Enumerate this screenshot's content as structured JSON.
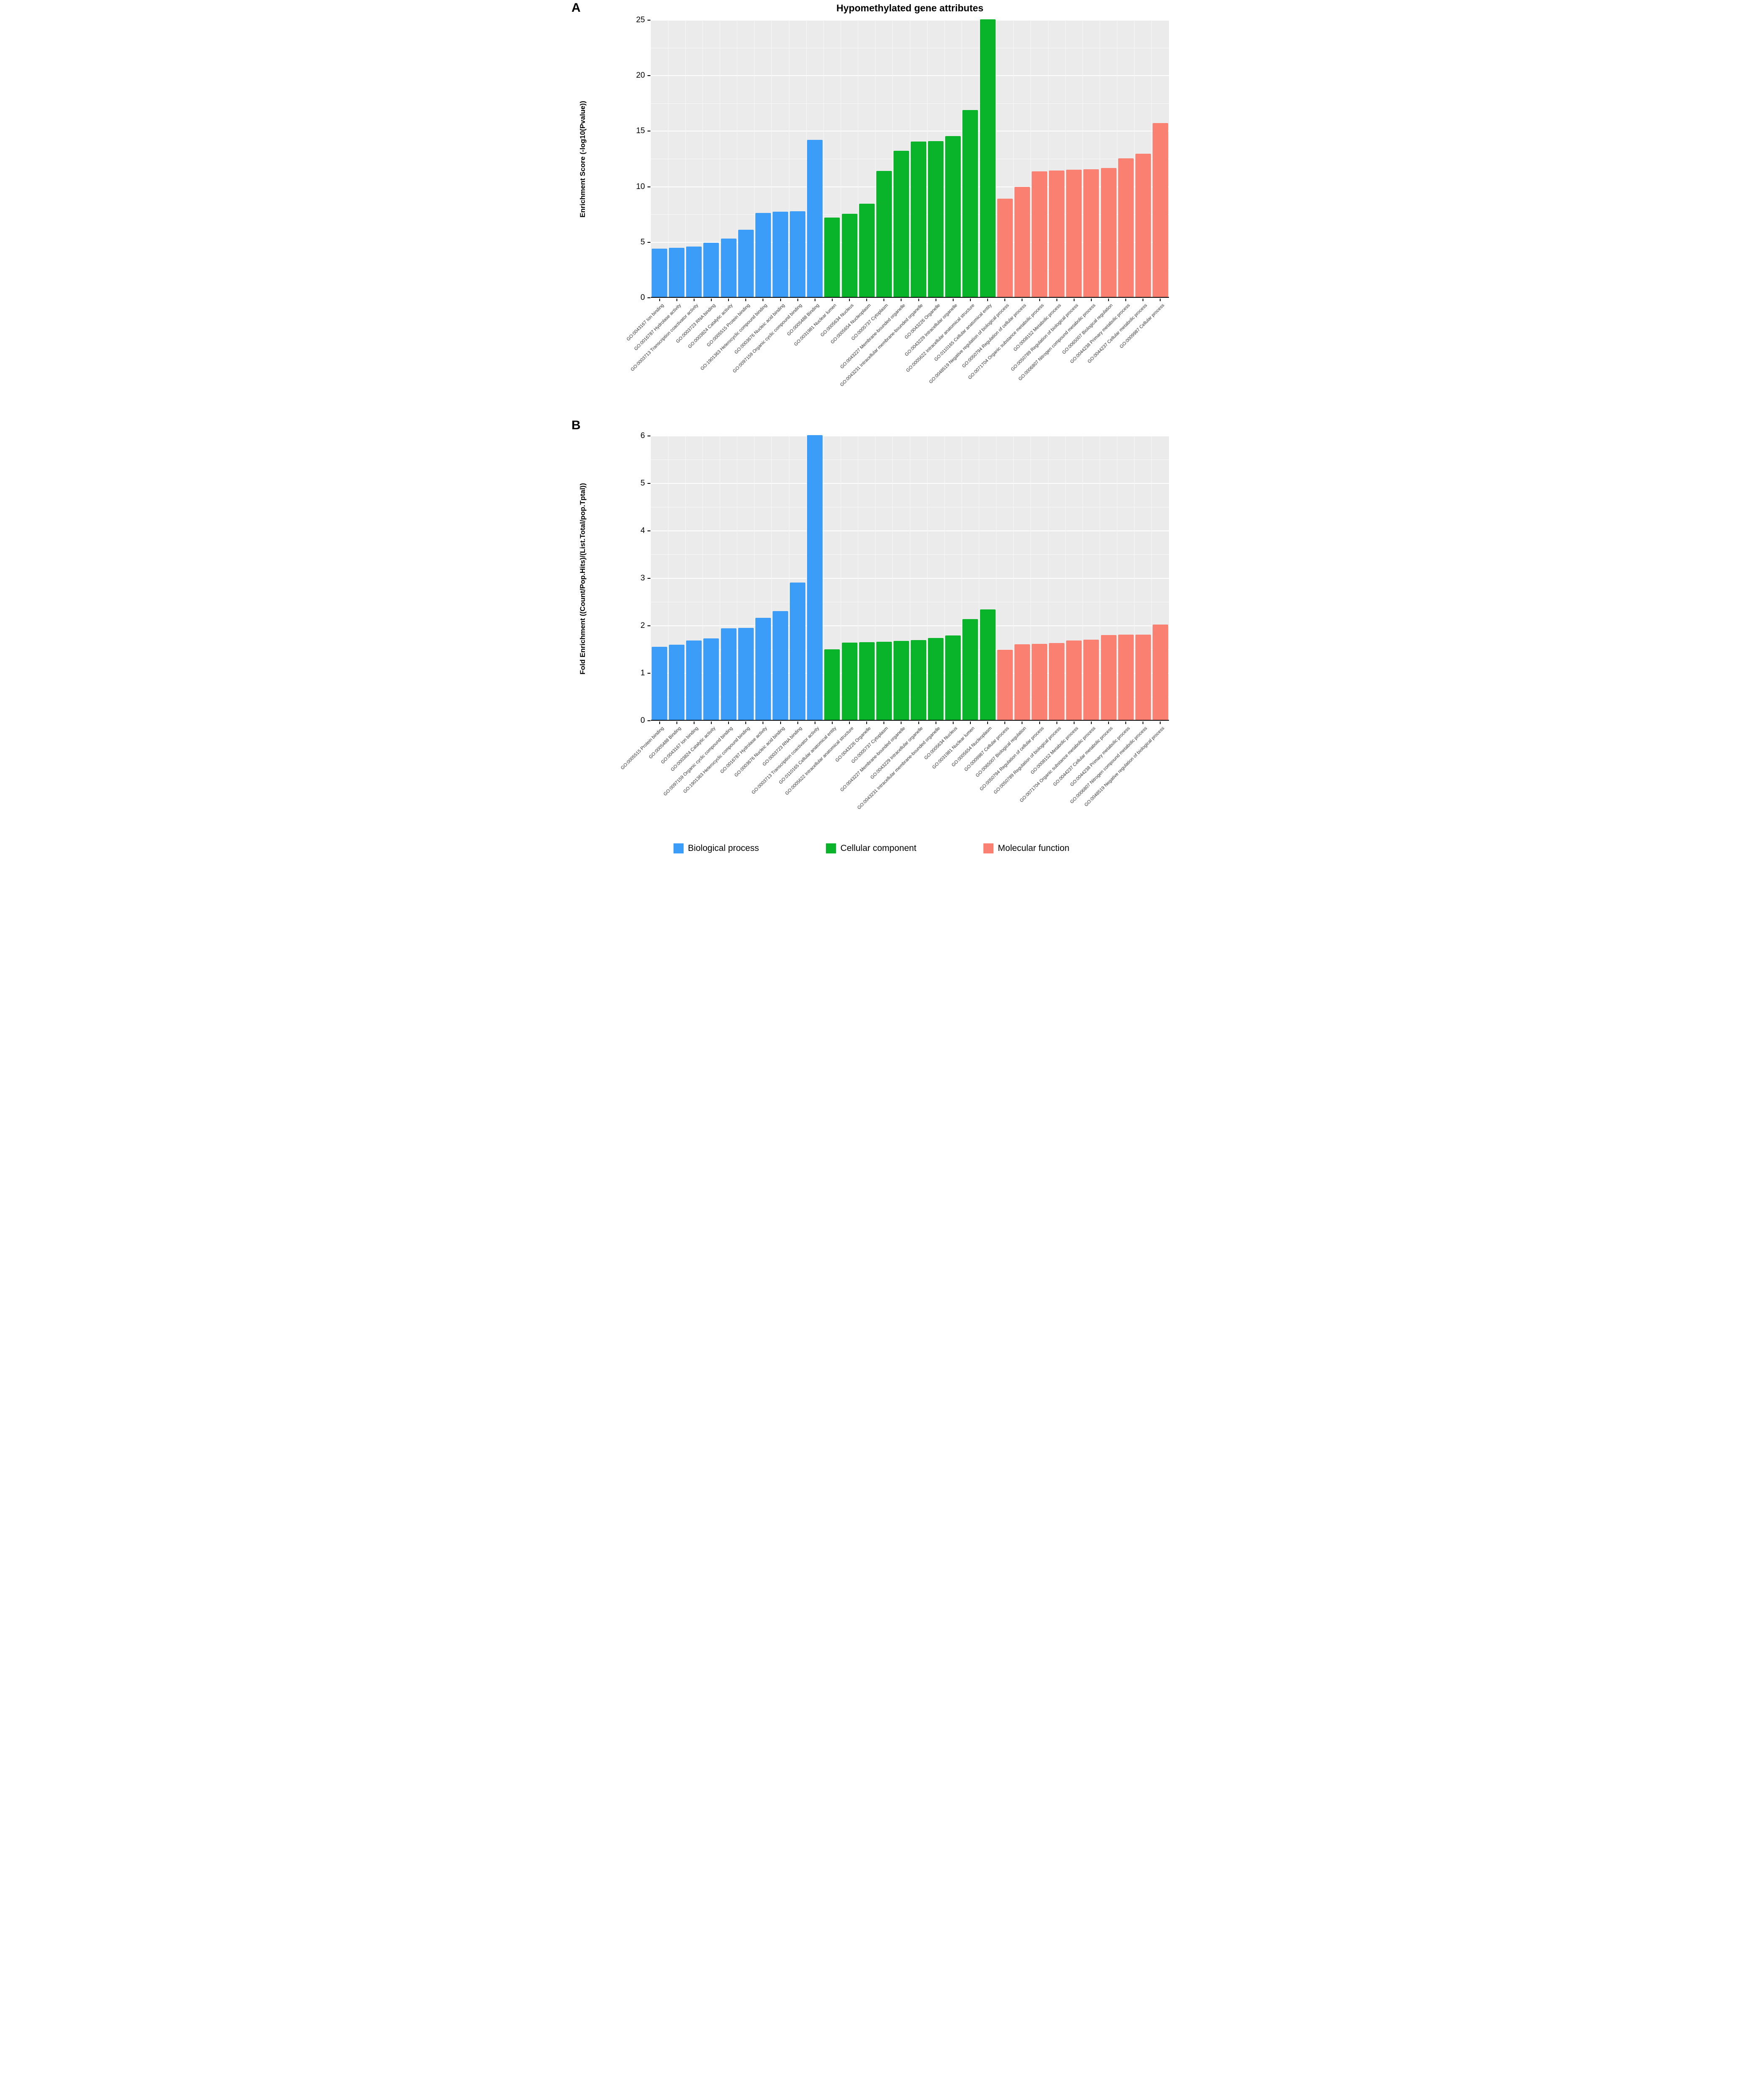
{
  "figure": {
    "panel_a_letter": "A",
    "panel_b_letter": "B",
    "title": "Hypomethylated gene attributes"
  },
  "legend": {
    "items": [
      {
        "label": "Biological process",
        "color": "#3B9DF8"
      },
      {
        "label": "Cellular component",
        "color": "#09B42A"
      },
      {
        "label": "Molecular function",
        "color": "#FA8072"
      }
    ]
  },
  "chart_data": [
    {
      "type": "bar",
      "panel": "A",
      "title": "Hypomethylated gene attributes",
      "xlabel": "",
      "ylabel": "Enrichment Score (-log10(Pvalue))",
      "ylim": [
        0,
        25
      ],
      "yticks": [
        0,
        5,
        10,
        15,
        20,
        25
      ],
      "minor_step": 2.5,
      "grid": true,
      "legend_position": "bottom-shared",
      "panel_bg": "#EBEBEB",
      "bars": [
        {
          "label": "GO:0043167 Ion binding",
          "group": "Biological process",
          "value": 4.35
        },
        {
          "label": "GO:0016787 Hydrolase activity",
          "group": "Biological process",
          "value": 4.42
        },
        {
          "label": "GO:0003713 Transcription coactivator activity",
          "group": "Biological process",
          "value": 4.55
        },
        {
          "label": "GO:0003723 RNA binding",
          "group": "Biological process",
          "value": 4.87
        },
        {
          "label": "GO:0003824 Catalytic activity",
          "group": "Biological process",
          "value": 5.25
        },
        {
          "label": "GO:0005515 Protein binding",
          "group": "Biological process",
          "value": 6.05
        },
        {
          "label": "GO:1901363 Heterocyclic compound binding",
          "group": "Biological process",
          "value": 7.55
        },
        {
          "label": "GO:0003676 Nucleic acid binding",
          "group": "Biological process",
          "value": 7.67
        },
        {
          "label": "GO:0097159 Organic cyclic compound binding",
          "group": "Biological process",
          "value": 7.72
        },
        {
          "label": "GO:0005488 Binding",
          "group": "Biological process",
          "value": 14.15
        },
        {
          "label": "GO:0031981 Nuclear lumen",
          "group": "Cellular component",
          "value": 7.15
        },
        {
          "label": "GO:0005634 Nucleus",
          "group": "Cellular component",
          "value": 7.5
        },
        {
          "label": "GO:0005654 Nucleoplasm",
          "group": "Cellular component",
          "value": 8.4
        },
        {
          "label": "GO:0005737 Cytoplasm",
          "group": "Cellular component",
          "value": 11.35
        },
        {
          "label": "GO:0043227 Membrane-bounded organelle",
          "group": "Cellular component",
          "value": 13.15
        },
        {
          "label": "GO:0043231 Intracellular membrane-bounded organelle",
          "group": "Cellular component",
          "value": 14.0
        },
        {
          "label": "GO:0043226 Organelle",
          "group": "Cellular component",
          "value": 14.05
        },
        {
          "label": "GO:0043229 Intracellular organelle",
          "group": "Cellular component",
          "value": 14.5
        },
        {
          "label": "GO:0005622 Intracellular anatomical structure",
          "group": "Cellular component",
          "value": 16.85
        },
        {
          "label": "GO:0110165 Cellular anatomical entity",
          "group": "Cellular component",
          "value": 25
        },
        {
          "label": "GO:0048519 Negative regulation of biological process",
          "group": "Molecular function",
          "value": 8.85
        },
        {
          "label": "GO:0050794 Regulation of cellular process",
          "group": "Molecular function",
          "value": 9.9
        },
        {
          "label": "GO:0071704 Organic substance metabolic process",
          "group": "Molecular function",
          "value": 11.3
        },
        {
          "label": "GO:0008152 Metabolic process",
          "group": "Molecular function",
          "value": 11.4
        },
        {
          "label": "GO:0050789 Regulation of biological process",
          "group": "Molecular function",
          "value": 11.45
        },
        {
          "label": "GO:0006807 Nitrogen compound metabolic process",
          "group": "Molecular function",
          "value": 11.5
        },
        {
          "label": "GO:0065007 Biological regulation",
          "group": "Molecular function",
          "value": 11.6
        },
        {
          "label": "GO:0044238 Primary metabolic process",
          "group": "Molecular function",
          "value": 12.5
        },
        {
          "label": "GO:0044237 Cellular metabolic process",
          "group": "Molecular function",
          "value": 12.9
        },
        {
          "label": "GO:0009987 Cellular process",
          "group": "Molecular function",
          "value": 15.65
        }
      ]
    },
    {
      "type": "bar",
      "panel": "B",
      "title": "",
      "xlabel": "",
      "ylabel": "Fold Enrichment ((Count/Pop.Hits)/(List.Total/pop.Tptal))",
      "ylim": [
        0,
        6
      ],
      "yticks": [
        0,
        1,
        2,
        3,
        4,
        5,
        6
      ],
      "minor_step": 0.5,
      "grid": true,
      "legend_position": "bottom-shared",
      "panel_bg": "#EBEBEB",
      "bars": [
        {
          "label": "GO:0005515 Protein binding",
          "group": "Biological process",
          "value": 1.54
        },
        {
          "label": "GO:0005488 Binding",
          "group": "Biological process",
          "value": 1.58
        },
        {
          "label": "GO:0043167 Ion binding",
          "group": "Biological process",
          "value": 1.67
        },
        {
          "label": "GO:0003824 Catalytic activity",
          "group": "Biological process",
          "value": 1.72
        },
        {
          "label": "GO:0097159 Organic cyclic compound binding",
          "group": "Biological process",
          "value": 1.93
        },
        {
          "label": "GO:1901363 Heterocyclic compound binding",
          "group": "Biological process",
          "value": 1.94
        },
        {
          "label": "GO:0016787 Hydrolase activity",
          "group": "Biological process",
          "value": 2.15
        },
        {
          "label": "GO:0003676 Nucleic acid binding",
          "group": "Biological process",
          "value": 2.29
        },
        {
          "label": "GO:0003723 RNA binding",
          "group": "Biological process",
          "value": 2.89
        },
        {
          "label": "GO:0003713 Transcription coactivator activity",
          "group": "Biological process",
          "value": 6.0
        },
        {
          "label": "GO:0110165 Cellular anatomical entity",
          "group": "Cellular component",
          "value": 1.49
        },
        {
          "label": "GO:0005622 Intracellular anatomical structure",
          "group": "Cellular component",
          "value": 1.63
        },
        {
          "label": "GO:0043226 Organelle",
          "group": "Cellular component",
          "value": 1.64
        },
        {
          "label": "GO:0005737 Cytoplasm",
          "group": "Cellular component",
          "value": 1.65
        },
        {
          "label": "GO:0043227 Membrane-bounded organelle",
          "group": "Cellular component",
          "value": 1.66
        },
        {
          "label": "GO:0043229 Intracellular organelle",
          "group": "Cellular component",
          "value": 1.68
        },
        {
          "label": "GO:0043231 Intracellular membrane-bounded organelle",
          "group": "Cellular component",
          "value": 1.73
        },
        {
          "label": "GO:0005634 Nucleus",
          "group": "Cellular component",
          "value": 1.78
        },
        {
          "label": "GO:0031981 Nuclear lumen",
          "group": "Cellular component",
          "value": 2.12
        },
        {
          "label": "GO:0005654 Nucleoplasm",
          "group": "Cellular component",
          "value": 2.33
        },
        {
          "label": "GO:0009987 Cellular process",
          "group": "Molecular function",
          "value": 1.48
        },
        {
          "label": "GO:0065007 Biological regulation",
          "group": "Molecular function",
          "value": 1.59
        },
        {
          "label": "GO:0050794 Regulation of cellular process",
          "group": "Molecular function",
          "value": 1.6
        },
        {
          "label": "GO:0050789 Regulation of biological process",
          "group": "Molecular function",
          "value": 1.62
        },
        {
          "label": "GO:0008152 Metabolic process",
          "group": "Molecular function",
          "value": 1.67
        },
        {
          "label": "GO:0071704 Organic substance metabolic process",
          "group": "Molecular function",
          "value": 1.69
        },
        {
          "label": "GO:0044237 Cellular metabolic process",
          "group": "Molecular function",
          "value": 1.79
        },
        {
          "label": "GO:0044238 Primary metabolic process",
          "group": "Molecular function",
          "value": 1.8
        },
        {
          "label": "GO:0006807 Nitrogen compound metabolic process",
          "group": "Molecular function",
          "value": 1.8
        },
        {
          "label": "GO:0048519 Negative regulation of biological process",
          "group": "Molecular function",
          "value": 2.01
        }
      ]
    }
  ]
}
